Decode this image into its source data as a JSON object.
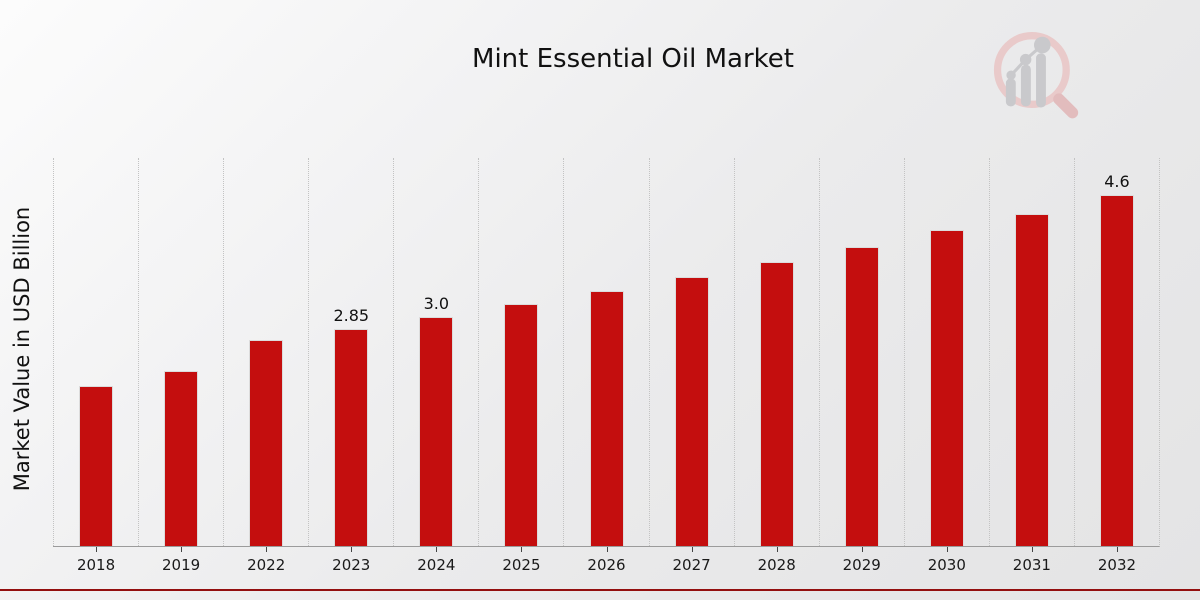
{
  "page": {
    "footer_bar_color": "#c00b0b",
    "watermark_icon": "magnifier-bar-chart-icon",
    "background_top_left": "#fcfcfc",
    "background_bottom_right": "#e4e4e5"
  },
  "chart_data": {
    "type": "bar",
    "title": "Mint Essential Oil Market",
    "xlabel": "",
    "ylabel": "Market Value in USD Billion",
    "categories": [
      "2018",
      "2019",
      "2022",
      "2023",
      "2024",
      "2025",
      "2026",
      "2027",
      "2028",
      "2029",
      "2030",
      "2031",
      "2032"
    ],
    "values": [
      2.1,
      2.3,
      2.7,
      2.85,
      3.0,
      3.17,
      3.34,
      3.53,
      3.72,
      3.92,
      4.14,
      4.36,
      4.6
    ],
    "data_labels": [
      "",
      "",
      "",
      "2.85",
      "3.0",
      "",
      "",
      "",
      "",
      "",
      "",
      "",
      "4.6"
    ],
    "bar_color": "#c40e0e",
    "ylim": [
      0,
      5.09
    ],
    "grid": "vertical-dotted-category-separators",
    "legend": "none"
  }
}
